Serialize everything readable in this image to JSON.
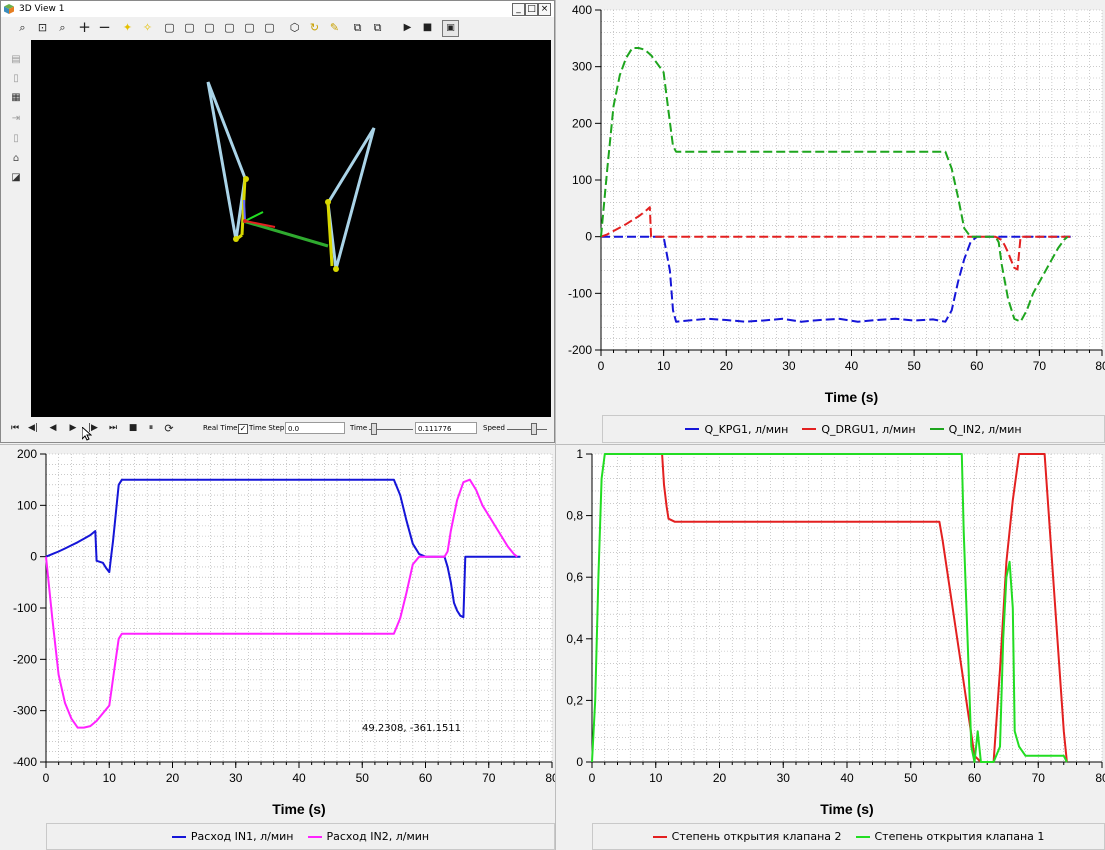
{
  "window3d": {
    "title": "3D View 1",
    "win_buttons": [
      "_",
      "□",
      "×"
    ],
    "toolbar_icons": [
      "zoom-fit-icon",
      "zoom-region-icon",
      "zoom-icon",
      "zoom-in-icon",
      "zoom-out-icon",
      "light-icon",
      "center-icon",
      "view-front-icon",
      "view-back-icon",
      "view-left-icon",
      "view-right-icon",
      "view-top-icon",
      "view-bottom-icon",
      "view-iso-icon",
      "rotate-icon",
      "pick-icon",
      "wireframe-icon",
      "shaded-icon",
      "play-icon",
      "stop-icon",
      "save-icon"
    ],
    "sidebar_icons": [
      "layer-1-icon",
      "layer-2-icon",
      "grid-icon",
      "arrow-icon",
      "cylinder-icon",
      "camera-icon",
      "object-icon"
    ],
    "bottom": {
      "transport": [
        "⏮",
        "◀|",
        "◀",
        "▶",
        "|▶",
        "⏭",
        "■",
        "⏸",
        "⟳"
      ],
      "real_time_label": "Real Time",
      "time_step_label": "Time Step",
      "time_step_value": "0.0",
      "time_label": "Time",
      "time_value": "0.111776",
      "speed_label": "Speed",
      "time_step_checked": "✓"
    }
  },
  "colors": {
    "blue": "#1515d8",
    "red": "#e32020",
    "green": "#1ea51e",
    "magenta": "#ff22ff",
    "lime": "#22dd22",
    "grid": "#aaaaaa",
    "axis": "#000000"
  },
  "coord_readout": "49.2308, -361.1511",
  "chart_data": [
    {
      "id": "tr",
      "type": "line",
      "xlabel": "Time (s)",
      "ylabel": "",
      "xlim": [
        0,
        80
      ],
      "ylim": [
        -200,
        400
      ],
      "xticks": [
        0,
        10,
        20,
        30,
        40,
        50,
        60,
        70,
        80
      ],
      "yticks": [
        -200,
        -100,
        0,
        100,
        200,
        300,
        400
      ],
      "ytick_labels": [
        "-200",
        "-100",
        "0",
        "100",
        "200",
        "300",
        "400"
      ],
      "series": [
        {
          "name": "Q_KPG1, л/мин",
          "color": "#1515d8",
          "dashed": true,
          "x": [
            0,
            9,
            10,
            11,
            11.5,
            12,
            14,
            17,
            20,
            23,
            26,
            29,
            32,
            35,
            38,
            41,
            44,
            47,
            50,
            53,
            55,
            56,
            57,
            58,
            59,
            60,
            61,
            62,
            75
          ],
          "y": [
            0,
            0,
            0,
            -60,
            -130,
            -150,
            -148,
            -145,
            -147,
            -150,
            -148,
            -145,
            -150,
            -147,
            -145,
            -150,
            -147,
            -145,
            -148,
            -146,
            -150,
            -130,
            -80,
            -40,
            -10,
            0,
            0,
            0,
            0
          ]
        },
        {
          "name": "Q_DRGU1, л/мин",
          "color": "#e32020",
          "dashed": true,
          "x": [
            0,
            1,
            2,
            3,
            4,
            5,
            6,
            7,
            7.8,
            8,
            9,
            10,
            11,
            12,
            15,
            18,
            21,
            24,
            27,
            30,
            33,
            36,
            39,
            42,
            45,
            48,
            51,
            54,
            55,
            56,
            57,
            58,
            59,
            60,
            61,
            62,
            63,
            64,
            64.5,
            65,
            65.5,
            66,
            66.5,
            67,
            75
          ],
          "y": [
            0,
            4,
            10,
            16,
            22,
            29,
            36,
            44,
            52,
            0,
            0,
            0,
            0,
            0,
            0,
            0,
            0,
            0,
            0,
            0,
            0,
            0,
            0,
            0,
            0,
            0,
            0,
            0,
            0,
            0,
            0,
            0,
            0,
            0,
            0,
            0,
            0,
            -6,
            -16,
            -28,
            -42,
            -55,
            -58,
            0,
            0
          ]
        },
        {
          "name": "Q_IN2, л/мин",
          "color": "#1ea51e",
          "dashed": true,
          "x": [
            0,
            1,
            2,
            3,
            4,
            5,
            6,
            7,
            8,
            9,
            10,
            10.8,
            11.5,
            12,
            20,
            30,
            40,
            50,
            55,
            56,
            57,
            58,
            59,
            60,
            61,
            62,
            63,
            63.5,
            64,
            65,
            66,
            67,
            68,
            69,
            70,
            71,
            72,
            73,
            74,
            74.5
          ],
          "y": [
            0,
            120,
            230,
            285,
            315,
            333,
            333,
            330,
            320,
            305,
            290,
            220,
            160,
            150,
            150,
            150,
            150,
            150,
            150,
            120,
            70,
            15,
            0,
            0,
            0,
            0,
            0,
            -10,
            -50,
            -110,
            -145,
            -150,
            -130,
            -100,
            -80,
            -60,
            -40,
            -20,
            -5,
            0
          ]
        }
      ]
    },
    {
      "id": "bl",
      "type": "line",
      "xlabel": "Time (s)",
      "ylabel": "",
      "xlim": [
        0,
        80
      ],
      "ylim": [
        -400,
        200
      ],
      "xticks": [
        0,
        10,
        20,
        30,
        40,
        50,
        60,
        70,
        80
      ],
      "yticks": [
        -400,
        -300,
        -200,
        -100,
        0,
        100,
        200
      ],
      "ytick_labels": [
        "-400",
        "-300",
        "-200",
        "-100",
        "0",
        "100",
        "200"
      ],
      "series": [
        {
          "name": "Расход IN1, л/мин",
          "color": "#1515d8",
          "dashed": false,
          "x": [
            0,
            1,
            2,
            3,
            4,
            5,
            6,
            7,
            7.8,
            8,
            9,
            9.5,
            10,
            10.3,
            10.6,
            11,
            11.5,
            12,
            20,
            30,
            40,
            50,
            55,
            56,
            57,
            58,
            59,
            60,
            61,
            62,
            63,
            63.5,
            64,
            64.5,
            65,
            65.5,
            66,
            66.3,
            66.6,
            67,
            75
          ],
          "y": [
            0,
            5,
            10,
            16,
            22,
            28,
            35,
            42,
            50,
            -8,
            -12,
            -22,
            -30,
            0,
            30,
            80,
            140,
            150,
            150,
            150,
            150,
            150,
            150,
            120,
            70,
            25,
            5,
            0,
            0,
            0,
            0,
            -20,
            -50,
            -90,
            -105,
            -115,
            -118,
            0,
            0,
            0,
            0
          ]
        },
        {
          "name": "Расход IN2, л/мин",
          "color": "#ff22ff",
          "dashed": false,
          "x": [
            0,
            1,
            2,
            3,
            4,
            5,
            6,
            7,
            8,
            9,
            10,
            10.8,
            11.5,
            12,
            20,
            30,
            40,
            50,
            55,
            56,
            57,
            58,
            59,
            60,
            61,
            62,
            63,
            63.5,
            64,
            65,
            66,
            67,
            68,
            69,
            70,
            71,
            72,
            73,
            74,
            74.5
          ],
          "y": [
            0,
            -120,
            -230,
            -285,
            -315,
            -333,
            -333,
            -330,
            -320,
            -305,
            -290,
            -220,
            -160,
            -150,
            -150,
            -150,
            -150,
            -150,
            -150,
            -120,
            -70,
            -15,
            0,
            0,
            0,
            0,
            0,
            10,
            50,
            110,
            145,
            150,
            130,
            100,
            80,
            60,
            40,
            20,
            5,
            0
          ]
        }
      ]
    },
    {
      "id": "br",
      "type": "line",
      "xlabel": "Time (s)",
      "ylabel": "",
      "xlim": [
        0,
        80
      ],
      "ylim": [
        0,
        1
      ],
      "xticks": [
        0,
        10,
        20,
        30,
        40,
        50,
        60,
        70,
        80
      ],
      "yticks": [
        0,
        0.2,
        0.4,
        0.6,
        0.8,
        1
      ],
      "ytick_labels": [
        "0",
        "0,2",
        "0,4",
        "0,6",
        "0,8",
        "1"
      ],
      "series": [
        {
          "name": "Степень открытия клапана 2",
          "color": "#e32020",
          "dashed": false,
          "x": [
            11,
            11.3,
            11.7,
            12,
            13,
            20,
            30,
            40,
            50,
            54.5,
            55,
            56,
            57,
            58,
            59,
            60,
            61,
            62,
            63,
            64,
            65,
            66,
            67,
            68,
            69,
            70,
            71,
            72,
            73,
            74,
            74.5
          ],
          "y": [
            1,
            0.9,
            0.83,
            0.79,
            0.78,
            0.78,
            0.78,
            0.78,
            0.78,
            0.78,
            0.72,
            0.58,
            0.44,
            0.3,
            0.16,
            0.02,
            0,
            0,
            0,
            0.3,
            0.65,
            0.85,
            1,
            1,
            1,
            1,
            1,
            0.7,
            0.4,
            0.1,
            0
          ]
        },
        {
          "name": "Степень открытия клапана 1",
          "color": "#22dd22",
          "dashed": false,
          "x": [
            0,
            0.5,
            1,
            1.5,
            2,
            10,
            20,
            30,
            40,
            50,
            55,
            58,
            58.3,
            59,
            59.5,
            60,
            60.5,
            61,
            63,
            64,
            64.5,
            65,
            65.5,
            66,
            66.3,
            67,
            68,
            70,
            72,
            74,
            74.5
          ],
          "y": [
            0,
            0.2,
            0.6,
            0.92,
            1,
            1,
            1,
            1,
            1,
            1,
            1,
            1,
            0.75,
            0.35,
            0.05,
            0,
            0.1,
            0,
            0,
            0.05,
            0.4,
            0.6,
            0.65,
            0.5,
            0.1,
            0.05,
            0.02,
            0.02,
            0.02,
            0.02,
            0
          ]
        }
      ]
    }
  ]
}
